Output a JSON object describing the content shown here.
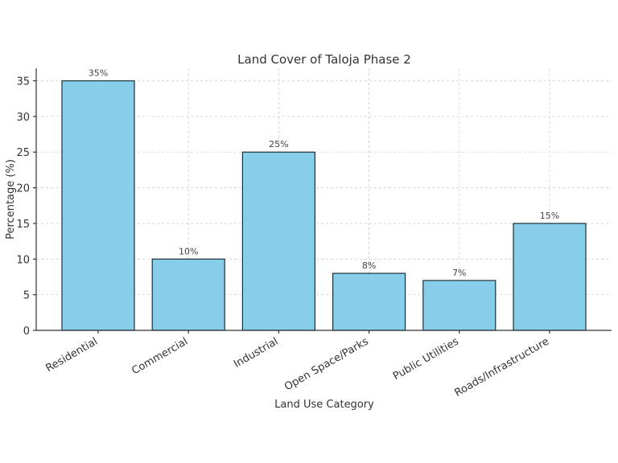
{
  "chart_data": {
    "type": "bar",
    "title": "Land Cover of Taloja Phase 2",
    "xlabel": "Land Use Category",
    "ylabel": "Percentage (%)",
    "categories": [
      "Residential",
      "Commercial",
      "Industrial",
      "Open Space/Parks",
      "Public Utilities",
      "Roads/Infrastructure"
    ],
    "values": [
      35,
      10,
      25,
      8,
      7,
      15
    ],
    "data_labels": [
      "35%",
      "10%",
      "25%",
      "8%",
      "7%",
      "15%"
    ],
    "ylim": [
      0,
      36.75
    ],
    "yticks": [
      0,
      5,
      10,
      15,
      20,
      25,
      30,
      35
    ],
    "grid": true,
    "legend": null,
    "bar_color": "#87ceeb",
    "edge_color": "#1f2f33",
    "x_tick_rotation": -30
  }
}
